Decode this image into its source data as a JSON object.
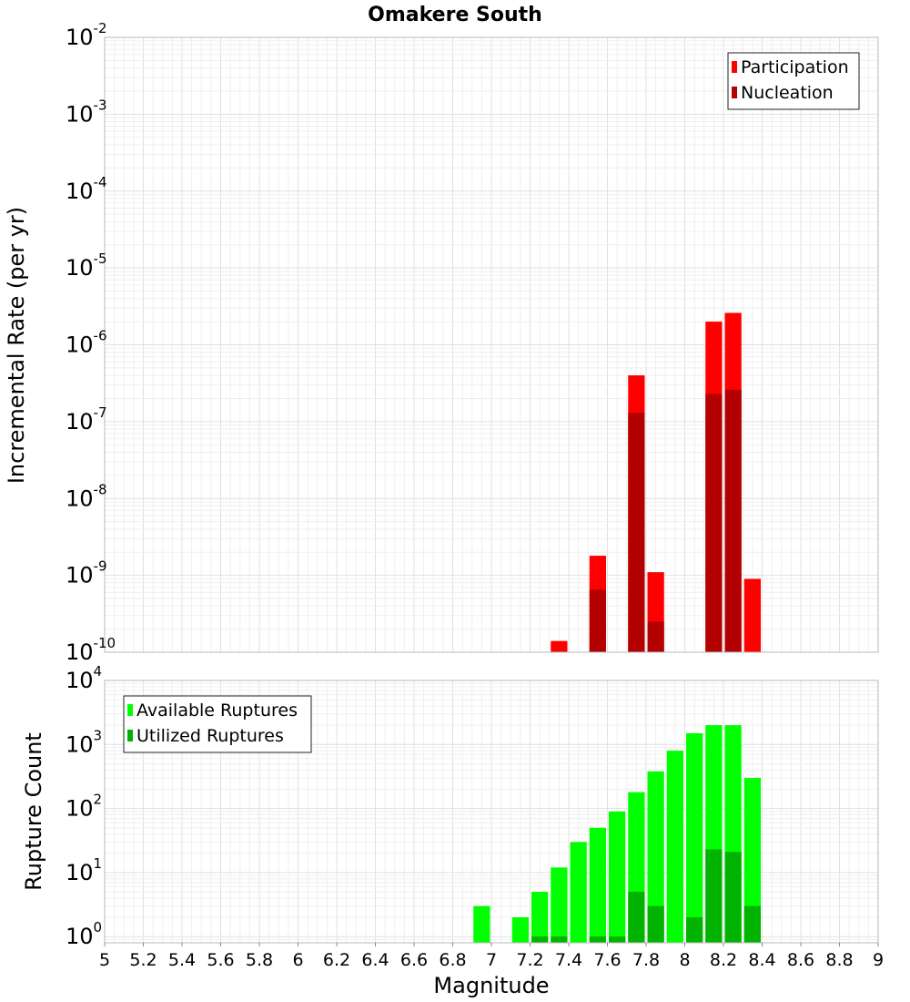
{
  "chart_data": [
    {
      "type": "bar",
      "title": "Omakere South",
      "ylabel": "Incremental Rate (per yr)",
      "xlabel": "",
      "xlim": [
        5,
        9
      ],
      "ylim": [
        1e-10,
        0.01
      ],
      "yscale": "log",
      "bar_width": 0.1,
      "grid": true,
      "legend_position": "top-right",
      "series": [
        {
          "name": "Participation",
          "color": "#ff0000",
          "x": [
            7.35,
            7.55,
            7.75,
            7.85,
            8.15,
            8.25,
            8.35
          ],
          "values": [
            1.4e-10,
            1.8e-09,
            4e-07,
            1.1e-09,
            2e-06,
            2.6e-06,
            9e-10
          ]
        },
        {
          "name": "Nucleation",
          "color": "#b30000",
          "x": [
            7.55,
            7.75,
            7.85,
            8.15,
            8.25
          ],
          "values": [
            6.5e-10,
            1.3e-07,
            2.5e-10,
            2.3e-07,
            2.6e-07
          ]
        }
      ],
      "y_ticks": [
        {
          "mantissa": "10",
          "exp": "-10",
          "value": 1e-10
        },
        {
          "mantissa": "10",
          "exp": "-9",
          "value": 1e-09
        },
        {
          "mantissa": "10",
          "exp": "-8",
          "value": 1e-08
        },
        {
          "mantissa": "10",
          "exp": "-7",
          "value": 1e-07
        },
        {
          "mantissa": "10",
          "exp": "-6",
          "value": 1e-06
        },
        {
          "mantissa": "10",
          "exp": "-5",
          "value": 1e-05
        },
        {
          "mantissa": "10",
          "exp": "-4",
          "value": 0.0001
        },
        {
          "mantissa": "10",
          "exp": "-3",
          "value": 0.001
        },
        {
          "mantissa": "10",
          "exp": "-2",
          "value": 0.01
        }
      ]
    },
    {
      "type": "bar",
      "title": "",
      "ylabel": "Rupture Count",
      "xlabel": "Magnitude",
      "xlim": [
        5,
        9
      ],
      "ylim": [
        0.8,
        10000
      ],
      "yscale": "log",
      "bar_width": 0.1,
      "grid": true,
      "legend_position": "top-left",
      "series": [
        {
          "name": "Available Ruptures",
          "color": "#00ff00",
          "x": [
            6.95,
            7.15,
            7.25,
            7.35,
            7.45,
            7.55,
            7.65,
            7.75,
            7.85,
            7.95,
            8.05,
            8.15,
            8.25,
            8.35
          ],
          "values": [
            3,
            2,
            5,
            12,
            30,
            50,
            90,
            180,
            380,
            800,
            1500,
            2000,
            2000,
            300
          ]
        },
        {
          "name": "Utilized Ruptures",
          "color": "#00b300",
          "x": [
            7.25,
            7.35,
            7.55,
            7.65,
            7.75,
            7.85,
            8.05,
            8.15,
            8.25,
            8.35
          ],
          "values": [
            1,
            1,
            1,
            1,
            5,
            3,
            2,
            23,
            21,
            3
          ]
        }
      ],
      "x_ticks": [
        "5",
        "5.2",
        "5.4",
        "5.6",
        "5.8",
        "6",
        "6.2",
        "6.4",
        "6.6",
        "6.8",
        "7",
        "7.2",
        "7.4",
        "7.6",
        "7.8",
        "8",
        "8.2",
        "8.4",
        "8.6",
        "8.8",
        "9"
      ],
      "y_ticks": [
        {
          "mantissa": "10",
          "exp": "0",
          "value": 1
        },
        {
          "mantissa": "10",
          "exp": "1",
          "value": 10
        },
        {
          "mantissa": "10",
          "exp": "2",
          "value": 100
        },
        {
          "mantissa": "10",
          "exp": "3",
          "value": 1000
        },
        {
          "mantissa": "10",
          "exp": "4",
          "value": 10000
        }
      ]
    }
  ]
}
